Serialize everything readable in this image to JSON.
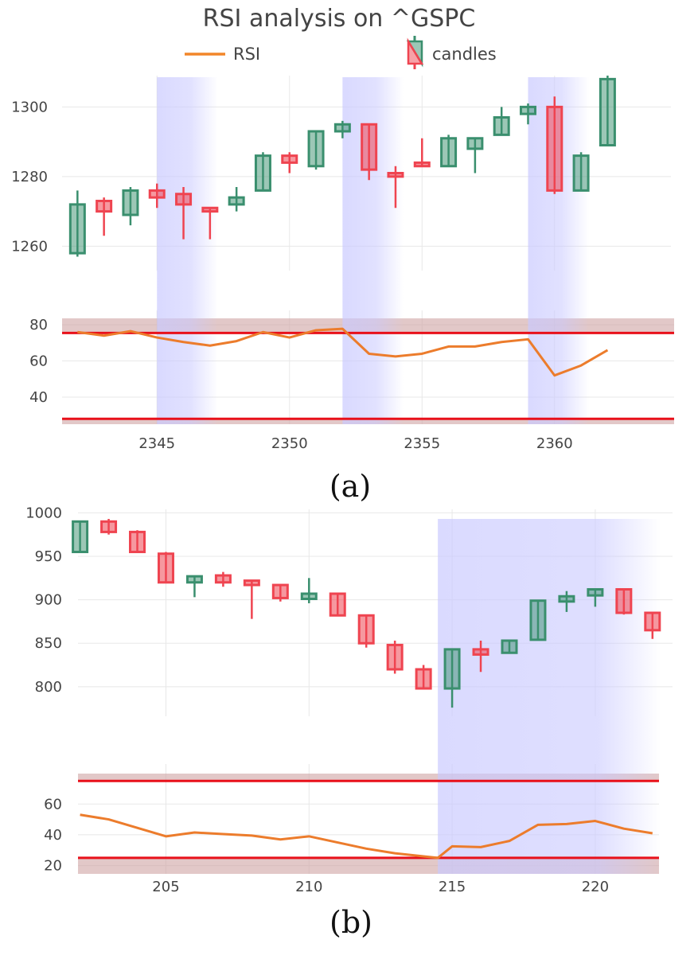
{
  "title": "RSI analysis on ^GSPC",
  "legend": [
    {
      "label": "RSI",
      "kind": "line",
      "color": "#f2862a"
    },
    {
      "label": "candles",
      "kind": "candle",
      "color": "#3a8f6e"
    }
  ],
  "colors": {
    "rsi_line": "#ec7c2c",
    "threshold_line": "#e8101a",
    "threshold_band": "#cfa3a3",
    "highlight": "#c9c9ff",
    "up": "#3a8f6e",
    "down": "#ef4450",
    "grid": "#e8e8e8"
  },
  "chart_data": [
    {
      "type": "candlestick",
      "caption": "(a)",
      "x_ticks": [
        2345,
        2350,
        2355,
        2360
      ],
      "xlim": [
        2341.9,
        2364.0
      ],
      "price": {
        "ylim": [
          1253,
          1309
        ],
        "y_ticks": [
          1260,
          1280,
          1300
        ]
      },
      "rsi_axis": {
        "ylim": [
          25,
          88
        ],
        "y_ticks": [
          40,
          60,
          80
        ]
      },
      "rsi_thresholds": [
        75.5,
        28
      ],
      "highlight_ranges": [
        [
          2345,
          2347
        ],
        [
          2352,
          2354
        ],
        [
          2359,
          2361
        ]
      ],
      "candles": [
        {
          "x": 2342,
          "open": 1258,
          "high": 1276,
          "low": 1257,
          "close": 1272
        },
        {
          "x": 2343,
          "open": 1273,
          "high": 1274,
          "low": 1263,
          "close": 1270
        },
        {
          "x": 2344,
          "open": 1269,
          "high": 1277,
          "low": 1266,
          "close": 1276
        },
        {
          "x": 2345,
          "open": 1276,
          "high": 1278,
          "low": 1271,
          "close": 1274
        },
        {
          "x": 2346,
          "open": 1275,
          "high": 1277,
          "low": 1262,
          "close": 1272
        },
        {
          "x": 2347,
          "open": 1271,
          "high": 1271,
          "low": 1262,
          "close": 1270
        },
        {
          "x": 2348,
          "open": 1272,
          "high": 1277,
          "low": 1270,
          "close": 1274
        },
        {
          "x": 2349,
          "open": 1276,
          "high": 1287,
          "low": 1276,
          "close": 1286
        },
        {
          "x": 2350,
          "open": 1286,
          "high": 1287,
          "low": 1281,
          "close": 1284
        },
        {
          "x": 2351,
          "open": 1283,
          "high": 1293,
          "low": 1282,
          "close": 1293
        },
        {
          "x": 2352,
          "open": 1293,
          "high": 1296,
          "low": 1291,
          "close": 1295
        },
        {
          "x": 2353,
          "open": 1295,
          "high": 1295,
          "low": 1279,
          "close": 1282
        },
        {
          "x": 2354,
          "open": 1281,
          "high": 1283,
          "low": 1271,
          "close": 1280
        },
        {
          "x": 2355,
          "open": 1284,
          "high": 1291,
          "low": 1283,
          "close": 1283
        },
        {
          "x": 2356,
          "open": 1283,
          "high": 1292,
          "low": 1283,
          "close": 1291
        },
        {
          "x": 2357,
          "open": 1288,
          "high": 1291,
          "low": 1281,
          "close": 1291
        },
        {
          "x": 2358,
          "open": 1292,
          "high": 1300,
          "low": 1292,
          "close": 1297
        },
        {
          "x": 2359,
          "open": 1298,
          "high": 1301,
          "low": 1295,
          "close": 1300
        },
        {
          "x": 2360,
          "open": 1300,
          "high": 1303,
          "low": 1275,
          "close": 1276
        },
        {
          "x": 2361,
          "open": 1276,
          "high": 1287,
          "low": 1276,
          "close": 1286
        },
        {
          "x": 2362,
          "open": 1289,
          "high": 1309,
          "low": 1289,
          "close": 1308
        }
      ],
      "rsi": {
        "x": [
          2342,
          2343,
          2344,
          2345,
          2346,
          2347,
          2348,
          2349,
          2350,
          2351,
          2352,
          2353,
          2354,
          2355,
          2356,
          2357,
          2358,
          2359,
          2360,
          2361,
          2362
        ],
        "y": [
          76,
          74,
          76.5,
          73,
          70.5,
          68.5,
          71,
          76,
          73,
          77,
          77.8,
          64,
          62.5,
          64,
          68,
          68,
          70.5,
          72,
          52,
          57.5,
          66
        ]
      }
    },
    {
      "type": "candlestick",
      "caption": "(b)",
      "x_ticks": [
        205,
        210,
        215,
        220
      ],
      "xlim": [
        201.9,
        222.2
      ],
      "price": {
        "ylim": [
          766,
          1004
        ],
        "y_ticks": [
          800,
          850,
          900,
          950,
          1000
        ]
      },
      "rsi_axis": {
        "ylim": [
          14.6,
          86
        ],
        "y_ticks": [
          20,
          40,
          60
        ]
      },
      "rsi_thresholds": [
        75,
        25
      ],
      "highlight_ranges": [
        [
          214.5,
          222
        ]
      ],
      "candles": [
        {
          "x": 202,
          "open": 955,
          "high": 990,
          "low": 955,
          "close": 990
        },
        {
          "x": 203,
          "open": 990,
          "high": 993,
          "low": 975,
          "close": 978
        },
        {
          "x": 204,
          "open": 978,
          "high": 980,
          "low": 955,
          "close": 955
        },
        {
          "x": 205,
          "open": 953,
          "high": 955,
          "low": 920,
          "close": 920
        },
        {
          "x": 206,
          "open": 920,
          "high": 928,
          "low": 903,
          "close": 927
        },
        {
          "x": 207,
          "open": 928,
          "high": 932,
          "low": 915,
          "close": 920
        },
        {
          "x": 208,
          "open": 922,
          "high": 922,
          "low": 878,
          "close": 917
        },
        {
          "x": 209,
          "open": 917,
          "high": 917,
          "low": 898,
          "close": 902
        },
        {
          "x": 210,
          "open": 901,
          "high": 925,
          "low": 896,
          "close": 907
        },
        {
          "x": 211,
          "open": 907,
          "high": 907,
          "low": 881,
          "close": 882
        },
        {
          "x": 212,
          "open": 882,
          "high": 882,
          "low": 845,
          "close": 850
        },
        {
          "x": 213,
          "open": 848,
          "high": 853,
          "low": 815,
          "close": 820
        },
        {
          "x": 214,
          "open": 820,
          "high": 825,
          "low": 797,
          "close": 798
        },
        {
          "x": 215,
          "open": 798,
          "high": 844,
          "low": 776,
          "close": 843
        },
        {
          "x": 216,
          "open": 843,
          "high": 853,
          "low": 817,
          "close": 837
        },
        {
          "x": 217,
          "open": 839,
          "high": 853,
          "low": 839,
          "close": 853
        },
        {
          "x": 218,
          "open": 854,
          "high": 899,
          "low": 854,
          "close": 899
        },
        {
          "x": 219,
          "open": 898,
          "high": 910,
          "low": 886,
          "close": 904
        },
        {
          "x": 220,
          "open": 905,
          "high": 913,
          "low": 892,
          "close": 912
        },
        {
          "x": 221,
          "open": 912,
          "high": 912,
          "low": 883,
          "close": 885
        },
        {
          "x": 222,
          "open": 885,
          "high": 886,
          "low": 855,
          "close": 865
        }
      ],
      "rsi": {
        "x": [
          202,
          203,
          204,
          205,
          206,
          207,
          208,
          209,
          210,
          211,
          212,
          213,
          214,
          214.5,
          215,
          216,
          217,
          218,
          219,
          220,
          221,
          222
        ],
        "y": [
          53,
          50,
          44.5,
          39,
          41.5,
          40.5,
          39.5,
          37,
          39,
          35,
          31,
          28,
          26,
          25,
          32.5,
          32,
          36,
          46.5,
          47,
          49,
          44,
          41
        ]
      }
    }
  ]
}
